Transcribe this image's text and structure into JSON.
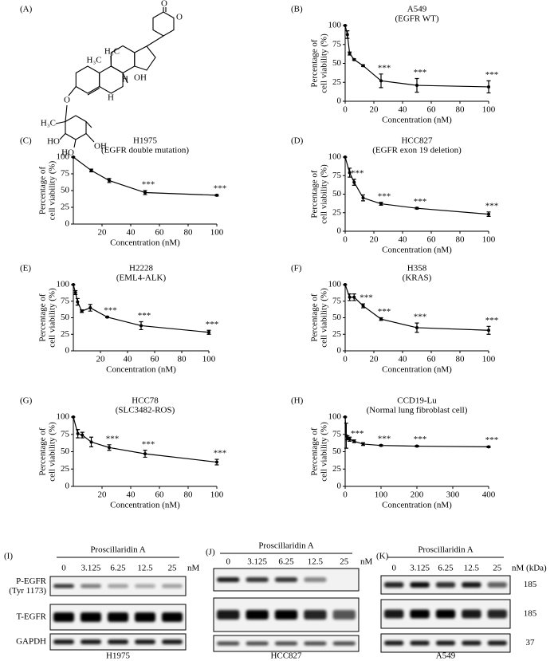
{
  "chart_data": [
    {
      "type": "line",
      "panel": "(B)",
      "title": "A549",
      "subtitle": "(EGFR WT)",
      "x": [
        0,
        1.5625,
        3.125,
        6.25,
        12.5,
        25,
        50,
        100
      ],
      "values": [
        100,
        88,
        63,
        55,
        47,
        27,
        21,
        19
      ],
      "errors": [
        0,
        5,
        2,
        1,
        1,
        9,
        9,
        8
      ],
      "color": "#000000",
      "xlim": [
        0,
        100
      ],
      "xticks": [
        0,
        20,
        40,
        60,
        80,
        100
      ],
      "ylim": [
        0,
        100
      ],
      "yticks": [
        0,
        25,
        50,
        75,
        100
      ],
      "xlabel": "Concentration (nM)",
      "ylabel": [
        "Percentage of",
        "cell viability (%)"
      ],
      "annotations": [
        {
          "x": 25,
          "text": "***"
        },
        {
          "x": 50,
          "text": "***"
        },
        {
          "x": 100,
          "text": "***"
        }
      ]
    },
    {
      "type": "line",
      "panel": "(C)",
      "title": "H1975",
      "subtitle": "(EGFR double mutation)",
      "x": [
        0,
        12.5,
        25,
        50,
        100
      ],
      "values": [
        100,
        80,
        65,
        47,
        43
      ],
      "errors": [
        0,
        2,
        3,
        3,
        1
      ],
      "color": "#000000",
      "xlim": [
        0,
        100
      ],
      "xticks": [
        20,
        40,
        60,
        80,
        100
      ],
      "ylim": [
        0,
        100
      ],
      "yticks": [
        0,
        25,
        50,
        75,
        100
      ],
      "xlabel": "Concentration (nM)",
      "ylabel": [
        "Percentage of",
        "cell viability (%)"
      ],
      "annotations": [
        {
          "x": 50,
          "text": "***"
        },
        {
          "x": 100,
          "text": "***"
        }
      ]
    },
    {
      "type": "line",
      "panel": "(D)",
      "title": "HCC827",
      "subtitle": "(EGFR exon 19 deletion)",
      "x": [
        0,
        3.125,
        6.25,
        12.5,
        25,
        50,
        100
      ],
      "values": [
        100,
        79,
        66,
        45,
        37,
        31,
        23
      ],
      "errors": [
        0,
        6,
        4,
        4,
        2,
        1,
        3
      ],
      "color": "#000000",
      "xlim": [
        0,
        100
      ],
      "xticks": [
        0,
        20,
        40,
        60,
        80,
        100
      ],
      "ylim": [
        0,
        100
      ],
      "yticks": [
        0,
        25,
        50,
        75,
        100
      ],
      "xlabel": "Concentration (nM)",
      "ylabel": [
        "Percentage of",
        "cell viability (%)"
      ],
      "annotations": [
        {
          "x": 6.25,
          "text": "***"
        },
        {
          "x": 25,
          "text": "***"
        },
        {
          "x": 50,
          "text": "***"
        },
        {
          "x": 100,
          "text": "***"
        }
      ]
    },
    {
      "type": "line",
      "panel": "(E)",
      "title": "H2228",
      "subtitle": "(EML4-ALK)",
      "x": [
        0,
        1.5625,
        3.125,
        6.25,
        12.5,
        25,
        50,
        100
      ],
      "values": [
        100,
        88,
        74,
        60,
        65,
        51,
        38,
        28
      ],
      "errors": [
        0,
        3,
        5,
        2,
        5,
        1,
        6,
        3
      ],
      "color": "#000000",
      "xlim": [
        0,
        100
      ],
      "xticks": [
        20,
        40,
        60,
        80,
        100
      ],
      "ylim": [
        0,
        100
      ],
      "yticks": [
        0,
        25,
        50,
        75,
        100
      ],
      "xlabel": "Concentration (nM)",
      "ylabel": [
        "Percentage of",
        "cell viability (%)"
      ],
      "annotations": [
        {
          "x": 25,
          "text": "***"
        },
        {
          "x": 50,
          "text": "***"
        },
        {
          "x": 100,
          "text": "***"
        }
      ]
    },
    {
      "type": "line",
      "panel": "(F)",
      "title": "H358",
      "subtitle": "(KRAS)",
      "x": [
        0,
        3.125,
        6.25,
        12.5,
        25,
        50,
        100
      ],
      "values": [
        100,
        81,
        81,
        68,
        48,
        35,
        31
      ],
      "errors": [
        0,
        5,
        5,
        3,
        2,
        7,
        6
      ],
      "color": "#000000",
      "xlim": [
        0,
        100
      ],
      "xticks": [
        0,
        20,
        40,
        60,
        80,
        100
      ],
      "ylim": [
        0,
        100
      ],
      "yticks": [
        0,
        25,
        50,
        75,
        100
      ],
      "xlabel": "Concentration (nM)",
      "ylabel": [
        "Percentage of",
        "cell viability (%)"
      ],
      "annotations": [
        {
          "x": 12.5,
          "text": "***"
        },
        {
          "x": 25,
          "text": "***"
        },
        {
          "x": 50,
          "text": "***"
        },
        {
          "x": 100,
          "text": "***"
        }
      ]
    },
    {
      "type": "line",
      "panel": "(G)",
      "title": "HCC78",
      "subtitle": "(SLC3482-ROS)",
      "x": [
        0,
        3.125,
        6.25,
        12.5,
        25,
        50,
        100
      ],
      "values": [
        100,
        76,
        74,
        64,
        56,
        47,
        35
      ],
      "errors": [
        0,
        6,
        4,
        7,
        4,
        5,
        4
      ],
      "color": "#000000",
      "xlim": [
        0,
        100
      ],
      "xticks": [
        20,
        40,
        60,
        80,
        100
      ],
      "ylim": [
        0,
        100
      ],
      "yticks": [
        0,
        25,
        50,
        75,
        100
      ],
      "xlabel": "Concentration (nM)",
      "ylabel": [
        "Percentage of",
        "cell viability (%)"
      ],
      "annotations": [
        {
          "x": 25,
          "text": "***"
        },
        {
          "x": 50,
          "text": "***"
        },
        {
          "x": 100,
          "text": "***"
        }
      ]
    },
    {
      "type": "line",
      "panel": "(H)",
      "title": "CCD19-Lu",
      "subtitle": "(Normal lung fibroblast cell)",
      "x": [
        0,
        3.125,
        6.25,
        12.5,
        25,
        50,
        100,
        200,
        400
      ],
      "values": [
        100,
        73,
        70,
        68,
        65,
        61,
        59,
        58,
        57
      ],
      "errors": [
        0,
        18,
        3,
        3,
        2,
        2,
        1,
        1,
        1
      ],
      "color": "#000000",
      "xlim": [
        0,
        400
      ],
      "xticks": [
        0,
        100,
        200,
        300,
        400
      ],
      "ylim": [
        0,
        100
      ],
      "yticks": [
        0,
        25,
        50,
        75,
        100
      ],
      "xlabel": "Concentration (nM)",
      "ylabel": [
        "Percentage of",
        "cell viability (%)"
      ],
      "annotations": [
        {
          "x": 25,
          "text": "***"
        },
        {
          "x": 100,
          "text": "***"
        },
        {
          "x": 200,
          "text": "***"
        },
        {
          "x": 400,
          "text": "***"
        }
      ]
    }
  ],
  "structure": {
    "panel": "(A)",
    "labels": [
      "O",
      "O",
      "H₃C",
      "H₃C",
      "H",
      "H",
      "OH",
      "O",
      "H₃C",
      "HO",
      "HO",
      "OH"
    ]
  },
  "blots": [
    {
      "panel": "(I)",
      "treatment": "Proscillaridin A",
      "lanes": [
        "0",
        "3.125",
        "6.25",
        "12.5",
        "25"
      ],
      "unit": "nM",
      "rows": [
        "P-EGFR\n(Tyr 1173)",
        "T-EGFR",
        "GAPDH"
      ],
      "cell": "H1975"
    },
    {
      "panel": "(J)",
      "treatment": "Proscillaridin A",
      "lanes": [
        "0",
        "3.125",
        "6.25",
        "12.5",
        "25"
      ],
      "unit": "nM",
      "cell": "HCC827"
    },
    {
      "panel": "(K)",
      "treatment": "Proscillaridin A",
      "lanes": [
        "0",
        "3.125",
        "6.25",
        "12.5",
        "25"
      ],
      "unit": "nM (kDa)",
      "kda": [
        "185",
        "185",
        "37"
      ],
      "cell": "A549"
    }
  ]
}
